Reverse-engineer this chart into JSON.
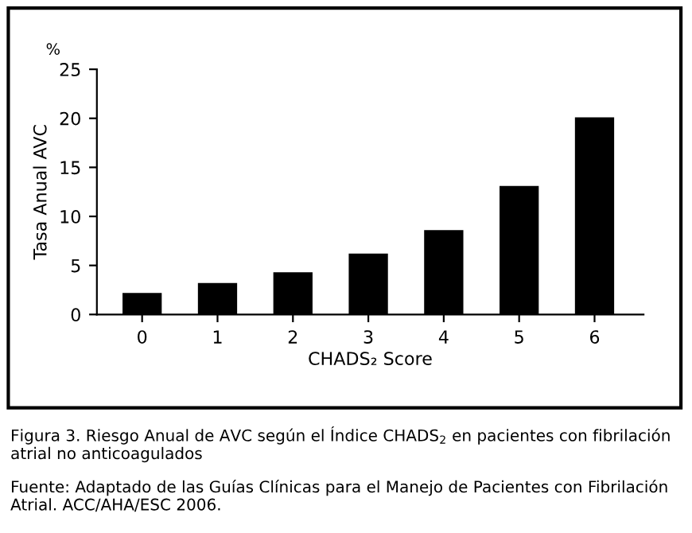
{
  "chart_data": {
    "type": "bar",
    "xlabel": "CHADS₂ Score",
    "ylabel": "Tasa Anual AVC",
    "categories": [
      "0",
      "1",
      "2",
      "3",
      "4",
      "5",
      "6"
    ],
    "values": [
      2.2,
      3.2,
      4.3,
      6.2,
      8.6,
      13.1,
      20.1
    ],
    "color": "#000000",
    "ylim": [
      0,
      25
    ],
    "yticks": [
      0,
      5,
      10,
      15,
      20,
      25
    ],
    "grid": false,
    "legend": false,
    "annotations": [
      "%",
      "Figura 3. Riesgo Anual de AVC según el Índice CHADS$_{2}$ en pacientes con fibrilación atrial no anticoagulados",
      "Fuente: Adaptado de las Guías Clínicas para el Manejo de Pacientes con Fibrilación Atrial. ACC/AHA/ESC 2006."
    ]
  }
}
